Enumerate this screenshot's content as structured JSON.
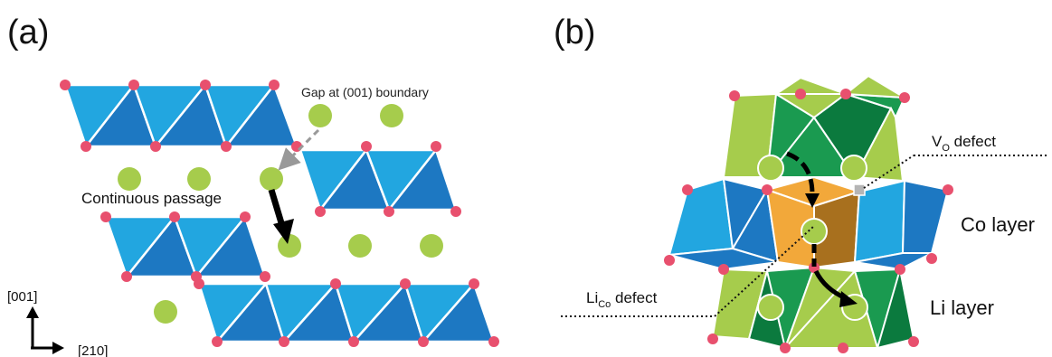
{
  "panel_a": {
    "label": "(a)",
    "gap_label": "Gap at (001) boundary",
    "passage_label": "Continuous passage",
    "axis_vertical": "[001]",
    "axis_horizontal": "[210]"
  },
  "panel_b": {
    "label": "(b)",
    "vo_defect_main": "V",
    "vo_defect_sub": "O",
    "vo_defect_rest": " defect",
    "lico_defect_main": "Li",
    "lico_defect_sub": "Co",
    "lico_defect_rest": " defect",
    "co_layer": "Co layer",
    "li_layer": "Li layer"
  },
  "colors": {
    "octahedron_light": "#22a6e0",
    "octahedron_dark": "#1d78c2",
    "oxygen": "#e8506e",
    "lithium": "#a6cc4c",
    "li_green_dark": "#0b7a3e",
    "li_green_mid": "#1a9a50",
    "defect_orange": "#f2a83a",
    "defect_brown": "#a8701e"
  }
}
